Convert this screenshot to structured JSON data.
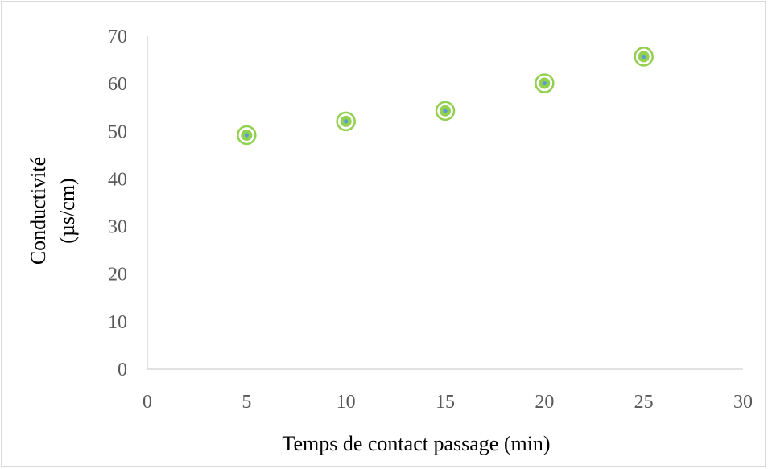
{
  "chart_data": {
    "type": "scatter",
    "title": "",
    "xlabel": "Temps de contact passage (min)",
    "ylabel_lines": [
      "Conductivité",
      "(µs/cm)"
    ],
    "xlim": [
      0,
      30
    ],
    "ylim": [
      0,
      70
    ],
    "x_ticks": [
      0,
      5,
      10,
      15,
      20,
      25,
      30
    ],
    "y_ticks": [
      0,
      10,
      20,
      30,
      40,
      50,
      60,
      70
    ],
    "grid": false,
    "legend": "none",
    "series": [
      {
        "x": [
          5,
          10,
          15,
          20,
          25
        ],
        "y": [
          49.2,
          52.1,
          54.3,
          60.1,
          65.7
        ]
      }
    ],
    "colors": {
      "marker_outer": "#92d050",
      "marker_inner": "#5b9bd5",
      "axis": "#d9d9d9"
    }
  }
}
